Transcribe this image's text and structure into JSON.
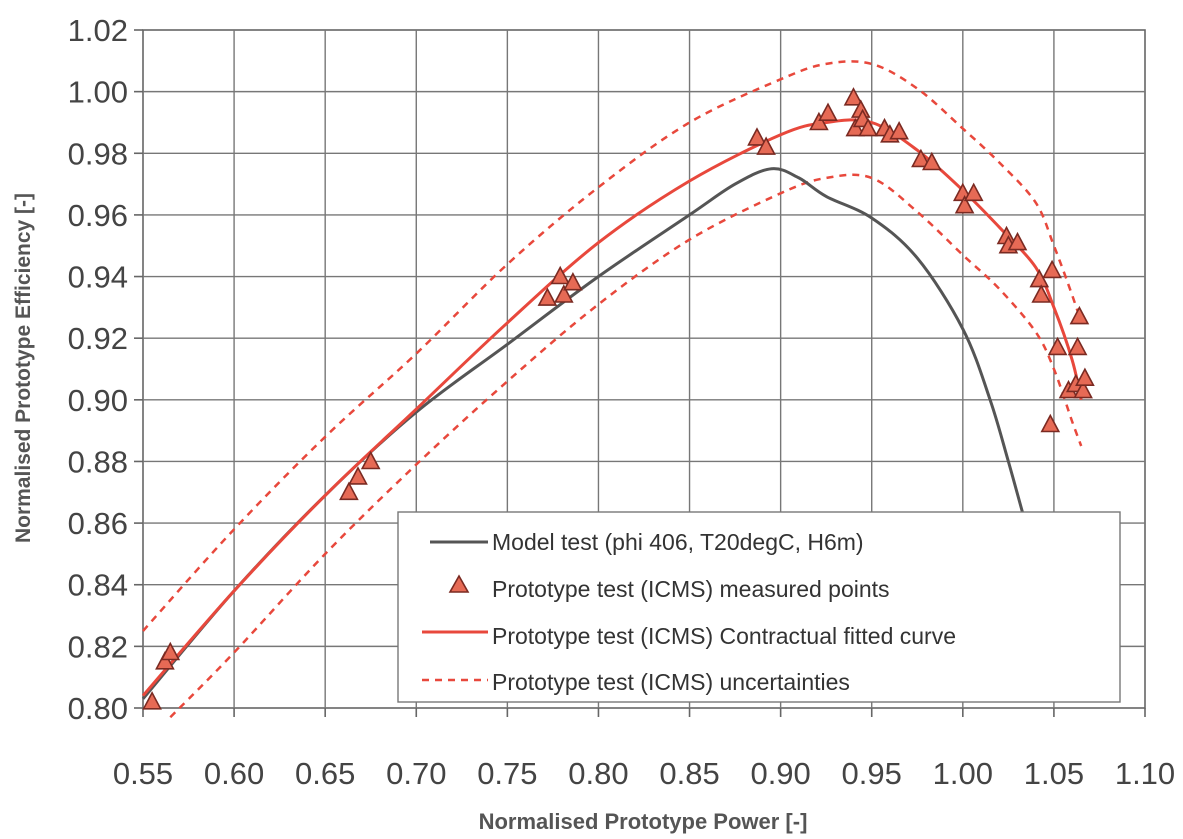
{
  "chart_data": {
    "type": "line",
    "title": "",
    "xlabel": "Normalised Prototype Power [-]",
    "ylabel": "Normalised Prototype Efficiency [-]",
    "xlim": [
      0.55,
      1.1
    ],
    "ylim": [
      0.8,
      1.02
    ],
    "x_ticks": [
      "0.55",
      "0.60",
      "0.65",
      "0.70",
      "0.75",
      "0.80",
      "0.85",
      "0.90",
      "0.95",
      "1.00",
      "1.05",
      "1.10"
    ],
    "y_ticks": [
      "1.02",
      "1.00",
      "0.98",
      "0.96",
      "0.94",
      "0.92",
      "0.90",
      "0.88",
      "0.86",
      "0.84",
      "0.82",
      "0.80"
    ],
    "grid": true,
    "legend_position": "bottom-right",
    "colors": {
      "model": "#555555",
      "prototype": "#e8483c",
      "marker_fill": "#e66a55",
      "marker_stroke": "#7a2a22"
    },
    "series": [
      {
        "name": "Model test (phi 406, T20degC, H6m)",
        "style": "solid-gray",
        "points": [
          [
            0.55,
            0.803
          ],
          [
            0.6,
            0.838
          ],
          [
            0.65,
            0.869
          ],
          [
            0.7,
            0.896
          ],
          [
            0.75,
            0.918
          ],
          [
            0.8,
            0.94
          ],
          [
            0.85,
            0.96
          ],
          [
            0.875,
            0.97
          ],
          [
            0.895,
            0.975
          ],
          [
            0.91,
            0.972
          ],
          [
            0.925,
            0.966
          ],
          [
            0.95,
            0.959
          ],
          [
            0.975,
            0.946
          ],
          [
            1.0,
            0.923
          ],
          [
            1.015,
            0.9
          ],
          [
            1.025,
            0.88
          ],
          [
            1.033,
            0.863
          ]
        ]
      },
      {
        "name": "Prototype test (ICMS) measured points",
        "style": "triangle-markers",
        "points": [
          [
            0.555,
            0.802
          ],
          [
            0.562,
            0.815
          ],
          [
            0.565,
            0.818
          ],
          [
            0.663,
            0.87
          ],
          [
            0.668,
            0.875
          ],
          [
            0.675,
            0.88
          ],
          [
            0.772,
            0.933
          ],
          [
            0.779,
            0.94
          ],
          [
            0.781,
            0.934
          ],
          [
            0.786,
            0.938
          ],
          [
            0.887,
            0.985
          ],
          [
            0.892,
            0.982
          ],
          [
            0.921,
            0.99
          ],
          [
            0.926,
            0.993
          ],
          [
            0.94,
            0.998
          ],
          [
            0.941,
            0.988
          ],
          [
            0.944,
            0.994
          ],
          [
            0.945,
            0.991
          ],
          [
            0.948,
            0.988
          ],
          [
            0.957,
            0.988
          ],
          [
            0.96,
            0.986
          ],
          [
            0.965,
            0.987
          ],
          [
            0.977,
            0.978
          ],
          [
            0.983,
            0.977
          ],
          [
            1.0,
            0.967
          ],
          [
            1.001,
            0.963
          ],
          [
            1.006,
            0.967
          ],
          [
            1.024,
            0.953
          ],
          [
            1.025,
            0.95
          ],
          [
            1.03,
            0.951
          ],
          [
            1.042,
            0.939
          ],
          [
            1.043,
            0.934
          ],
          [
            1.048,
            0.892
          ],
          [
            1.049,
            0.942
          ],
          [
            1.052,
            0.917
          ],
          [
            1.058,
            0.903
          ],
          [
            1.062,
            0.905
          ],
          [
            1.063,
            0.917
          ],
          [
            1.064,
            0.927
          ],
          [
            1.066,
            0.903
          ],
          [
            1.067,
            0.907
          ]
        ]
      },
      {
        "name": "Prototype test (ICMS) Contractual fitted curve",
        "style": "solid-red",
        "points": [
          [
            0.55,
            0.804
          ],
          [
            0.6,
            0.838
          ],
          [
            0.65,
            0.869
          ],
          [
            0.7,
            0.897
          ],
          [
            0.75,
            0.925
          ],
          [
            0.8,
            0.951
          ],
          [
            0.85,
            0.971
          ],
          [
            0.9,
            0.986
          ],
          [
            0.925,
            0.99
          ],
          [
            0.95,
            0.99
          ],
          [
            0.975,
            0.981
          ],
          [
            1.0,
            0.968
          ],
          [
            1.02,
            0.956
          ],
          [
            1.04,
            0.943
          ],
          [
            1.05,
            0.93
          ],
          [
            1.06,
            0.913
          ],
          [
            1.065,
            0.9
          ]
        ]
      },
      {
        "name": "Prototype test (ICMS) uncertainties",
        "style": "dashed-red",
        "upper": [
          [
            0.55,
            0.825
          ],
          [
            0.6,
            0.858
          ],
          [
            0.65,
            0.888
          ],
          [
            0.7,
            0.915
          ],
          [
            0.75,
            0.944
          ],
          [
            0.8,
            0.969
          ],
          [
            0.85,
            0.99
          ],
          [
            0.9,
            1.004
          ],
          [
            0.925,
            1.009
          ],
          [
            0.95,
            1.009
          ],
          [
            0.975,
            1.001
          ],
          [
            1.0,
            0.988
          ],
          [
            1.02,
            0.977
          ],
          [
            1.04,
            0.964
          ],
          [
            1.05,
            0.95
          ],
          [
            1.06,
            0.934
          ],
          [
            1.065,
            0.925
          ]
        ],
        "lower": [
          [
            0.565,
            0.797
          ],
          [
            0.6,
            0.818
          ],
          [
            0.65,
            0.85
          ],
          [
            0.7,
            0.879
          ],
          [
            0.75,
            0.906
          ],
          [
            0.8,
            0.931
          ],
          [
            0.85,
            0.952
          ],
          [
            0.9,
            0.967
          ],
          [
            0.925,
            0.972
          ],
          [
            0.95,
            0.972
          ],
          [
            0.975,
            0.961
          ],
          [
            1.0,
            0.947
          ],
          [
            1.02,
            0.936
          ],
          [
            1.04,
            0.922
          ],
          [
            1.05,
            0.91
          ],
          [
            1.06,
            0.893
          ],
          [
            1.065,
            0.885
          ]
        ]
      }
    ]
  }
}
